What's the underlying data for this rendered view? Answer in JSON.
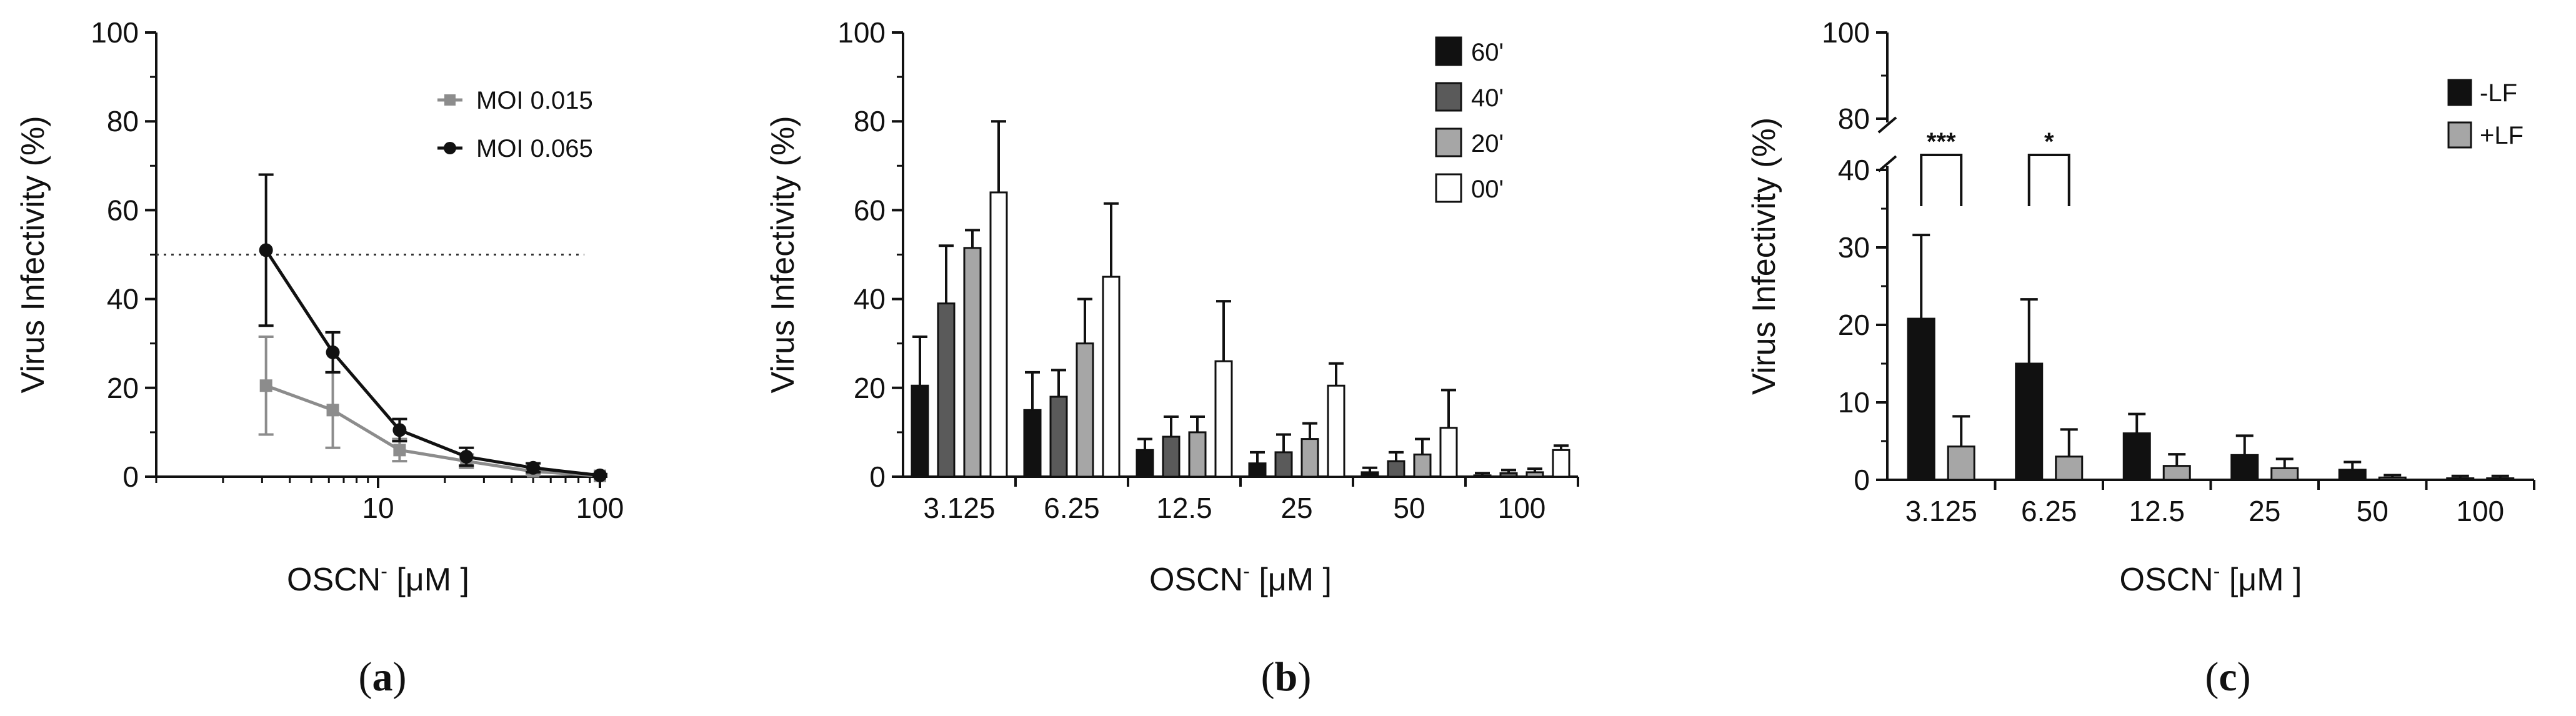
{
  "chart_data": [
    {
      "panel": "a",
      "type": "line",
      "caption": "(a)",
      "xlabel_main": "OSCN",
      "xlabel_sup": "-",
      "xlabel_unit": " [μM ]",
      "ylabel": "Virus Infectivity (%)",
      "xscale": "log",
      "xlim": [
        1,
        100
      ],
      "ylim": [
        0,
        100
      ],
      "yticks": [
        0,
        20,
        40,
        60,
        80,
        100
      ],
      "xticks": [
        10,
        100
      ],
      "reference_line": {
        "y": 50,
        "style": "dotted"
      },
      "series": [
        {
          "name": "MOI 0.015",
          "color": "#8c8c8c",
          "marker": "square",
          "x": [
            3.125,
            6.25,
            12.5,
            25,
            50,
            100
          ],
          "y": [
            20.5,
            15,
            6,
            3.5,
            1.2,
            0.2
          ],
          "err": [
            11,
            8.5,
            2.5,
            1.5,
            0.8,
            0.3
          ]
        },
        {
          "name": "MOI 0.065",
          "color": "#111111",
          "marker": "circle",
          "x": [
            3.125,
            6.25,
            12.5,
            25,
            50,
            100
          ],
          "y": [
            51,
            28,
            10.5,
            4.5,
            2,
            0.3
          ],
          "err": [
            17,
            4.5,
            2.5,
            2,
            1,
            0.3
          ]
        }
      ]
    },
    {
      "panel": "b",
      "type": "bar",
      "caption": "(b)",
      "xlabel_main": "OSCN",
      "xlabel_sup": "-",
      "xlabel_unit": " [μM ]",
      "ylabel": "Virus Infectivity (%)",
      "ylim": [
        0,
        100
      ],
      "yticks": [
        0,
        20,
        40,
        60,
        80,
        100
      ],
      "categories": [
        "3.125",
        "6.25",
        "12.5",
        "25",
        "50",
        "100"
      ],
      "series": [
        {
          "name": "60'",
          "color": "#111111",
          "values": [
            20.5,
            15,
            6,
            3,
            1,
            0.3
          ],
          "err": [
            11,
            8.5,
            2.5,
            2.5,
            1,
            0.5
          ]
        },
        {
          "name": "40'",
          "color": "#5a5a5a",
          "values": [
            39,
            18,
            9,
            5.5,
            3.5,
            0.8
          ],
          "err": [
            13,
            6,
            4.5,
            4,
            2,
            0.7
          ]
        },
        {
          "name": "20'",
          "color": "#a6a6a6",
          "values": [
            51.5,
            30,
            10,
            8.5,
            5,
            1
          ],
          "err": [
            4,
            10,
            3.5,
            3.5,
            3.5,
            0.8
          ]
        },
        {
          "name": "00'",
          "color": "#ffffff",
          "values": [
            64,
            45,
            26,
            20.5,
            11,
            6
          ],
          "err": [
            16,
            16.5,
            13.5,
            5,
            8.5,
            1
          ]
        }
      ]
    },
    {
      "panel": "c",
      "type": "bar",
      "caption": "(c)",
      "xlabel_main": "OSCN",
      "xlabel_sup": "-",
      "xlabel_unit": " [μM ]",
      "ylabel": "Virus Infectivity (%)",
      "ylim": [
        0,
        100
      ],
      "axis_break": {
        "from": 40,
        "to": 80
      },
      "yticks_lower": [
        0,
        10,
        20,
        30,
        40
      ],
      "yticks_upper": [
        80,
        100
      ],
      "categories": [
        "3.125",
        "6.25",
        "12.5",
        "25",
        "50",
        "100"
      ],
      "series": [
        {
          "name": "-LF",
          "color": "#111111",
          "values": [
            20.8,
            15,
            6,
            3.2,
            1.3,
            0.2
          ],
          "err": [
            10.8,
            8.3,
            2.5,
            2.5,
            1,
            0.3
          ]
        },
        {
          "name": "+LF",
          "color": "#a6a6a6",
          "values": [
            4.3,
            3,
            1.8,
            1.5,
            0.3,
            0.2
          ],
          "err": [
            3.9,
            3.5,
            1.5,
            1.2,
            0.3,
            0.3
          ]
        }
      ],
      "significance": [
        {
          "category": "3.125",
          "label": "***"
        },
        {
          "category": "6.25",
          "label": "*"
        }
      ]
    }
  ]
}
